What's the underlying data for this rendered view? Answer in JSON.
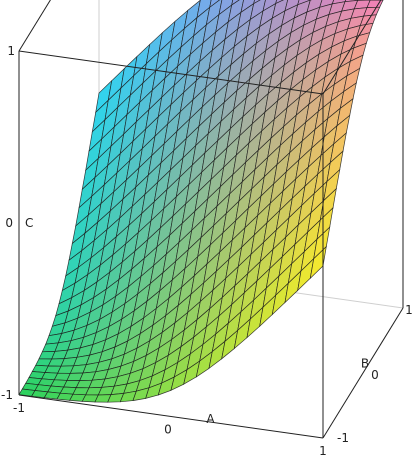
{
  "chart_data": {
    "type": "surface3d",
    "xlabel": "A",
    "ylabel": "B",
    "zlabel": "C",
    "x_range": [
      -1,
      1
    ],
    "y_range": [
      -1,
      1
    ],
    "z_range": [
      -1,
      1
    ],
    "x_ticks": [
      "-1",
      "0",
      "1"
    ],
    "y_ticks": [
      "-1",
      "0",
      "1"
    ],
    "z_ticks": [
      "-1",
      "0",
      "1"
    ],
    "grid_n": 24,
    "surface": "C = clamp(A + B, -1, 1) with smooth rounded transitions",
    "colormap": [
      "#2bd15e",
      "#2fd6f0",
      "#f7ec2c",
      "#f35ae8"
    ]
  }
}
